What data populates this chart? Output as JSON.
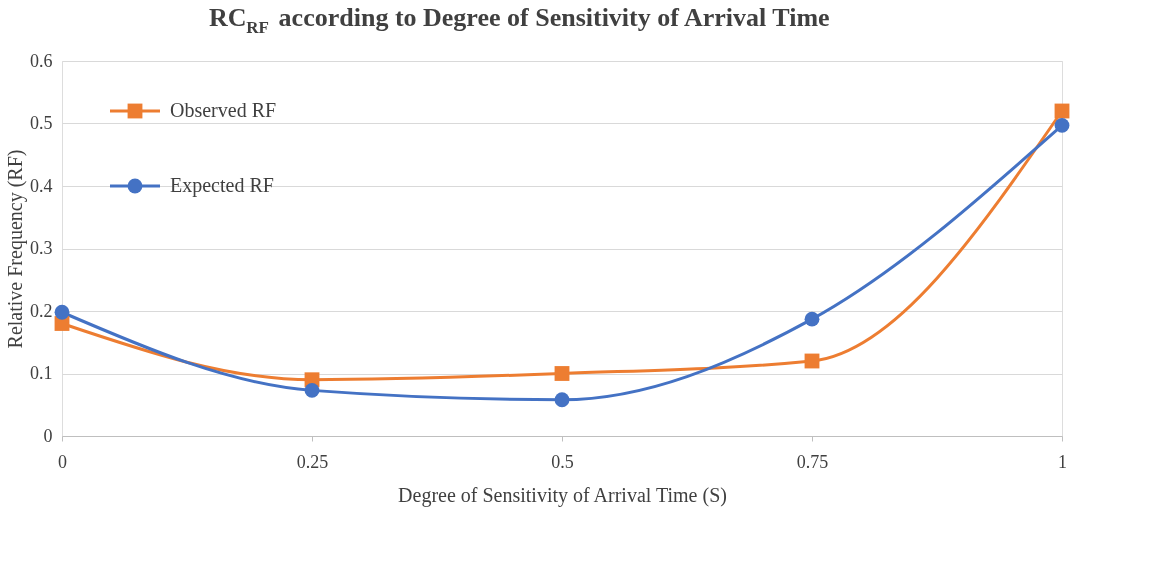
{
  "chart_data": {
    "type": "line",
    "title": "RC$_{RF}$ according to Degree of Sensitivity of Arrival Time",
    "xlabel": "Degree of Sensitivity of Arrival Time (S)",
    "ylabel": "Relative Frequency (RF)",
    "x": [
      0,
      0.25,
      0.5,
      0.75,
      1
    ],
    "series": [
      {
        "name": "Observed RF",
        "color": "#ed7d31",
        "marker": "square",
        "values": [
          0.18,
          0.09,
          0.1,
          0.12,
          0.52
        ]
      },
      {
        "name": "Expected RF",
        "color": "#4472c4",
        "marker": "circle",
        "values": [
          0.198,
          0.073,
          0.058,
          0.187,
          0.497
        ]
      }
    ],
    "xlim": [
      0,
      1
    ],
    "xticks": [
      0,
      0.25,
      0.5,
      0.75,
      1
    ],
    "ylim": [
      0,
      0.6
    ],
    "yticks": [
      0,
      0.1,
      0.2,
      0.3,
      0.4,
      0.5,
      0.6
    ],
    "grid": "y",
    "legend": "top left",
    "line_style": "solid"
  }
}
